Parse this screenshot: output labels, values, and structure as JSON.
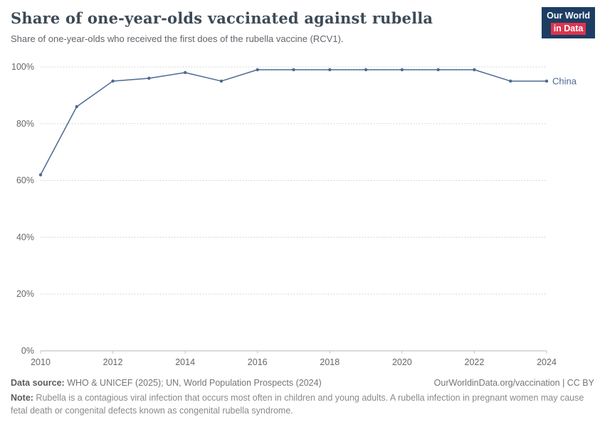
{
  "header": {
    "title": "Share of one-year-olds vaccinated against rubella",
    "subtitle": "Share of one-year-olds who received the first does of the rubella vaccine (RCV1).",
    "logo_line1": "Our World",
    "logo_line2": "in Data",
    "logo_bg": "#1d3d63",
    "logo_accent": "#dc354f"
  },
  "chart_data": {
    "type": "line",
    "title": "Share of one-year-olds vaccinated against rubella",
    "xlabel": "",
    "ylabel": "",
    "xlim": [
      2010,
      2024
    ],
    "ylim": [
      0,
      100
    ],
    "grid": "horizontal-dotted",
    "legend_position": "end-of-line-label",
    "x_ticks": [
      2010,
      2012,
      2014,
      2016,
      2018,
      2020,
      2022,
      2024
    ],
    "y_ticks": [
      0,
      20,
      40,
      60,
      80,
      100
    ],
    "y_tick_suffix": "%",
    "series": [
      {
        "name": "China",
        "color": "#4c6a92",
        "x": [
          2010,
          2011,
          2012,
          2013,
          2014,
          2015,
          2016,
          2017,
          2018,
          2019,
          2020,
          2021,
          2022,
          2023,
          2024
        ],
        "values": [
          62,
          86,
          95,
          96,
          98,
          95,
          99,
          99,
          99,
          99,
          99,
          99,
          99,
          95,
          95
        ]
      }
    ]
  },
  "footer": {
    "source_label": "Data source:",
    "source_text": " WHO & UNICEF (2025); UN, World Population Prospects (2024)",
    "credit": "OurWorldinData.org/vaccination | CC BY",
    "note_label": "Note:",
    "note_text": " Rubella is a contagious viral infection that occurs most often in children and young adults. A rubella infection in pregnant women may cause fetal death or congenital defects known as congenital rubella syndrome."
  }
}
